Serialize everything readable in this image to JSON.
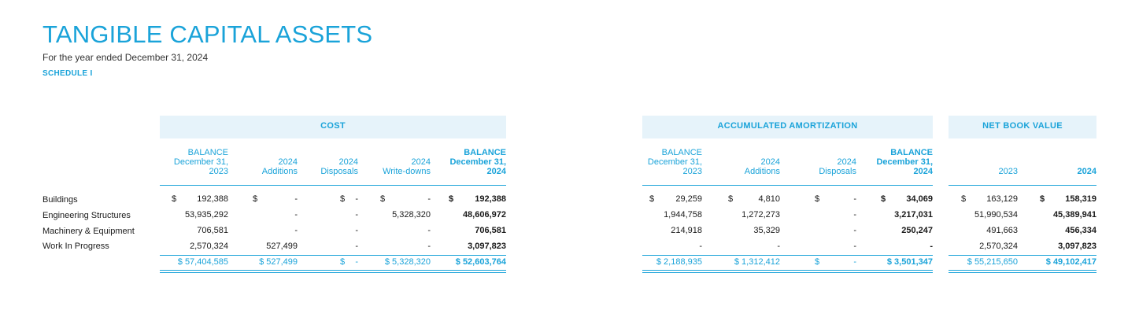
{
  "header": {
    "title": "TANGIBLE CAPITAL ASSETS",
    "subtitle": "For the year ended December 31, 2024",
    "schedule": "SCHEDULE I"
  },
  "groups": {
    "cost": "COST",
    "amort": "ACCUMULATED AMORTIZATION",
    "nbv": "NET BOOK VALUE"
  },
  "columns": {
    "c1": [
      "BALANCE",
      "December 31,",
      "2023"
    ],
    "c2": [
      "2024",
      "Additions"
    ],
    "c3": [
      "2024",
      "Disposals"
    ],
    "c4": [
      "2024",
      "Write-downs"
    ],
    "c5": [
      "BALANCE",
      "December 31,",
      "2024"
    ],
    "a1": [
      "BALANCE",
      "December 31,",
      "2023"
    ],
    "a2": [
      "2024",
      "Additions"
    ],
    "a3": [
      "2024",
      "Disposals"
    ],
    "a4": [
      "BALANCE",
      "December 31,",
      "2024"
    ],
    "n1": "2023",
    "n2": "2024"
  },
  "rows": [
    {
      "label": "Buildings",
      "c1": "192,388",
      "c2": "-",
      "c3": "-",
      "c4": "-",
      "c5": "192,388",
      "a1": "29,259",
      "a2": "4,810",
      "a3": "-",
      "a4": "34,069",
      "n1": "163,129",
      "n2": "158,319"
    },
    {
      "label": "Engineering Structures",
      "c1": "53,935,292",
      "c2": "-",
      "c3": "-",
      "c4": "5,328,320",
      "c5": "48,606,972",
      "a1": "1,944,758",
      "a2": "1,272,273",
      "a3": "-",
      "a4": "3,217,031",
      "n1": "51,990,534",
      "n2": "45,389,941"
    },
    {
      "label": "Machinery & Equipment",
      "c1": "706,581",
      "c2": "-",
      "c3": "-",
      "c4": "-",
      "c5": "706,581",
      "a1": "214,918",
      "a2": "35,329",
      "a3": "-",
      "a4": "250,247",
      "n1": "491,663",
      "n2": "456,334"
    },
    {
      "label": "Work In Progress",
      "c1": "2,570,324",
      "c2": "527,499",
      "c3": "-",
      "c4": "-",
      "c5": "3,097,823",
      "a1": "-",
      "a2": "-",
      "a3": "-",
      "a4": "-",
      "n1": "2,570,324",
      "n2": "3,097,823"
    }
  ],
  "totals": {
    "c1": "$ 57,404,585",
    "c2": "$ 527,499",
    "c3": "-",
    "c4": "$ 5,328,320",
    "c5": "$ 52,603,764",
    "a1": "$ 2,188,935",
    "a2": "$ 1,312,412",
    "a3": "-",
    "a4": "$ 3,501,347",
    "n1": "$ 55,215,650",
    "n2": "$ 49,102,417"
  },
  "currency": "$"
}
